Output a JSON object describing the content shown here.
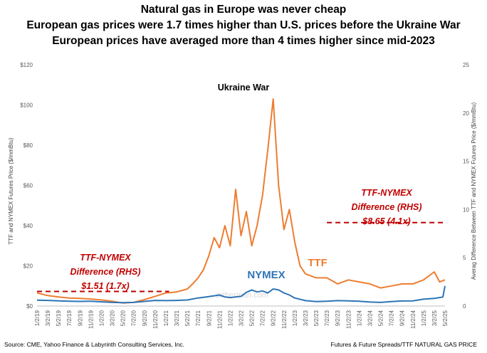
{
  "titles": {
    "line1": "Natural gas in Europe was never cheap",
    "line2": "European gas prices were 1.7 times higher than U.S. prices before the Ukraine War",
    "line3": "European prices have averaged more than 4 times higher since mid-2023"
  },
  "footer": {
    "source": "Source: CME, Yahoo Finance & Labyrinth Consulting Services, Inc.",
    "right": "Futures & Future Spreads/TTF NATURAL GAS PRICE"
  },
  "watermark": "artberman.com",
  "colors": {
    "ttf": "#ed7d31",
    "nymex": "#2e75b6",
    "difference": "#c00000",
    "text": "#000000"
  },
  "chart_data": {
    "type": "line",
    "title": "Natural gas in Europe was never cheap",
    "ylabel": "TTF and NYMEX Futures Price ($/mmBtu)",
    "y2label": "Averag Difference Between TTF and NYMEX Futures Price ($/mmBtu)",
    "ylim": [
      0,
      120
    ],
    "y2lim": [
      0,
      25
    ],
    "y_ticks": [
      "$0",
      "$20",
      "$40",
      "$60",
      "$80",
      "$100",
      "$120"
    ],
    "y2_ticks": [
      "0",
      "5",
      "10",
      "15",
      "20",
      "25"
    ],
    "x_ticks": [
      "1/2/19",
      "3/2/19",
      "5/2/19",
      "7/2/19",
      "9/2/19",
      "11/2/19",
      "1/2/20",
      "3/2/20",
      "5/2/20",
      "7/2/20",
      "9/2/20",
      "11/2/20",
      "1/2/21",
      "3/2/21",
      "5/2/21",
      "7/2/21",
      "9/2/21",
      "11/2/21",
      "1/2/22",
      "3/2/22",
      "5/2/22",
      "7/2/22",
      "9/2/22",
      "11/2/22",
      "1/2/23",
      "3/2/23",
      "5/2/23",
      "7/2/23",
      "9/2/23",
      "11/2/23",
      "1/2/24",
      "3/2/24",
      "5/2/24",
      "7/2/24",
      "9/2/24",
      "11/2/24",
      "1/2/25",
      "3/2/25",
      "5/2/25"
    ],
    "x_axis_end_label": "5/2/25",
    "grid": false,
    "series": [
      {
        "name": "TTF",
        "axis": "left",
        "x": [
          0,
          1,
          2,
          3,
          4,
          5,
          6,
          7,
          8,
          9,
          10,
          11,
          12,
          13,
          14,
          14.5,
          15,
          15.5,
          16,
          16.5,
          17,
          17.5,
          18,
          18.5,
          19,
          19.5,
          20,
          20.5,
          21,
          21.5,
          22,
          22.5,
          23,
          23.5,
          24,
          24.5,
          25,
          26,
          27,
          28,
          29,
          30,
          31,
          32,
          33,
          34,
          35,
          36,
          37,
          37.5,
          38
        ],
        "values": [
          6.5,
          5.2,
          4.5,
          4.0,
          3.8,
          3.5,
          3.0,
          2.4,
          1.5,
          1.8,
          3.2,
          4.8,
          6.5,
          7.0,
          8.5,
          11,
          14,
          18,
          25,
          34,
          29,
          40,
          30,
          58,
          35,
          47,
          30,
          40,
          55,
          78,
          103,
          60,
          38,
          48,
          32,
          20,
          16,
          14,
          14,
          11,
          13,
          12,
          11,
          9,
          10,
          11,
          11,
          13,
          17,
          12,
          13
        ]
      },
      {
        "name": "NYMEX",
        "axis": "left",
        "x": [
          0,
          1,
          2,
          3,
          4,
          5,
          6,
          7,
          8,
          9,
          10,
          11,
          12,
          13,
          14,
          15,
          16,
          17,
          17.5,
          18,
          19,
          19.5,
          20,
          20.5,
          21,
          21.5,
          22,
          22.5,
          23,
          23.5,
          24,
          25,
          26,
          27,
          28,
          29,
          30,
          31,
          32,
          33,
          34,
          35,
          36,
          37,
          37.5,
          37.8,
          38
        ],
        "values": [
          2.9,
          2.8,
          2.6,
          2.4,
          2.3,
          2.4,
          2.1,
          1.8,
          1.7,
          1.8,
          2.3,
          2.8,
          2.7,
          2.8,
          3.0,
          4.0,
          4.7,
          5.5,
          4.5,
          4.2,
          4.8,
          6.8,
          8.0,
          7.0,
          7.5,
          6.5,
          8.5,
          8.0,
          6.5,
          5.5,
          4.0,
          2.7,
          2.2,
          2.4,
          2.7,
          2.6,
          2.4,
          2.0,
          1.8,
          2.2,
          2.5,
          2.6,
          3.4,
          3.8,
          4.2,
          4.5,
          10.0
        ]
      },
      {
        "name": "TTF-NYMEX Difference (RHS) pre-war average",
        "axis": "right",
        "x": [
          0,
          12.3
        ],
        "values": [
          1.51,
          1.51
        ]
      },
      {
        "name": "TTF-NYMEX Difference (RHS) since mid-2023 average",
        "axis": "right",
        "x": [
          27,
          37.8
        ],
        "values": [
          8.65,
          8.65
        ]
      }
    ],
    "annotations": [
      {
        "id": "ukraine",
        "text": "Ukraine War"
      },
      {
        "id": "diff1_l1",
        "text": "TTF-NYMEX"
      },
      {
        "id": "diff1_l2",
        "text": "Difference (RHS)"
      },
      {
        "id": "diff1_l3",
        "text": "$1.51 (1.7x)"
      },
      {
        "id": "diff2_l1",
        "text": "TTF-NYMEX"
      },
      {
        "id": "diff2_l2",
        "text": "Difference (RHS)"
      },
      {
        "id": "diff2_l3",
        "text": "$8.65 (4.1x)"
      },
      {
        "id": "nymex_label",
        "text": "NYMEX"
      },
      {
        "id": "ttf_label",
        "text": "TTF"
      }
    ]
  }
}
